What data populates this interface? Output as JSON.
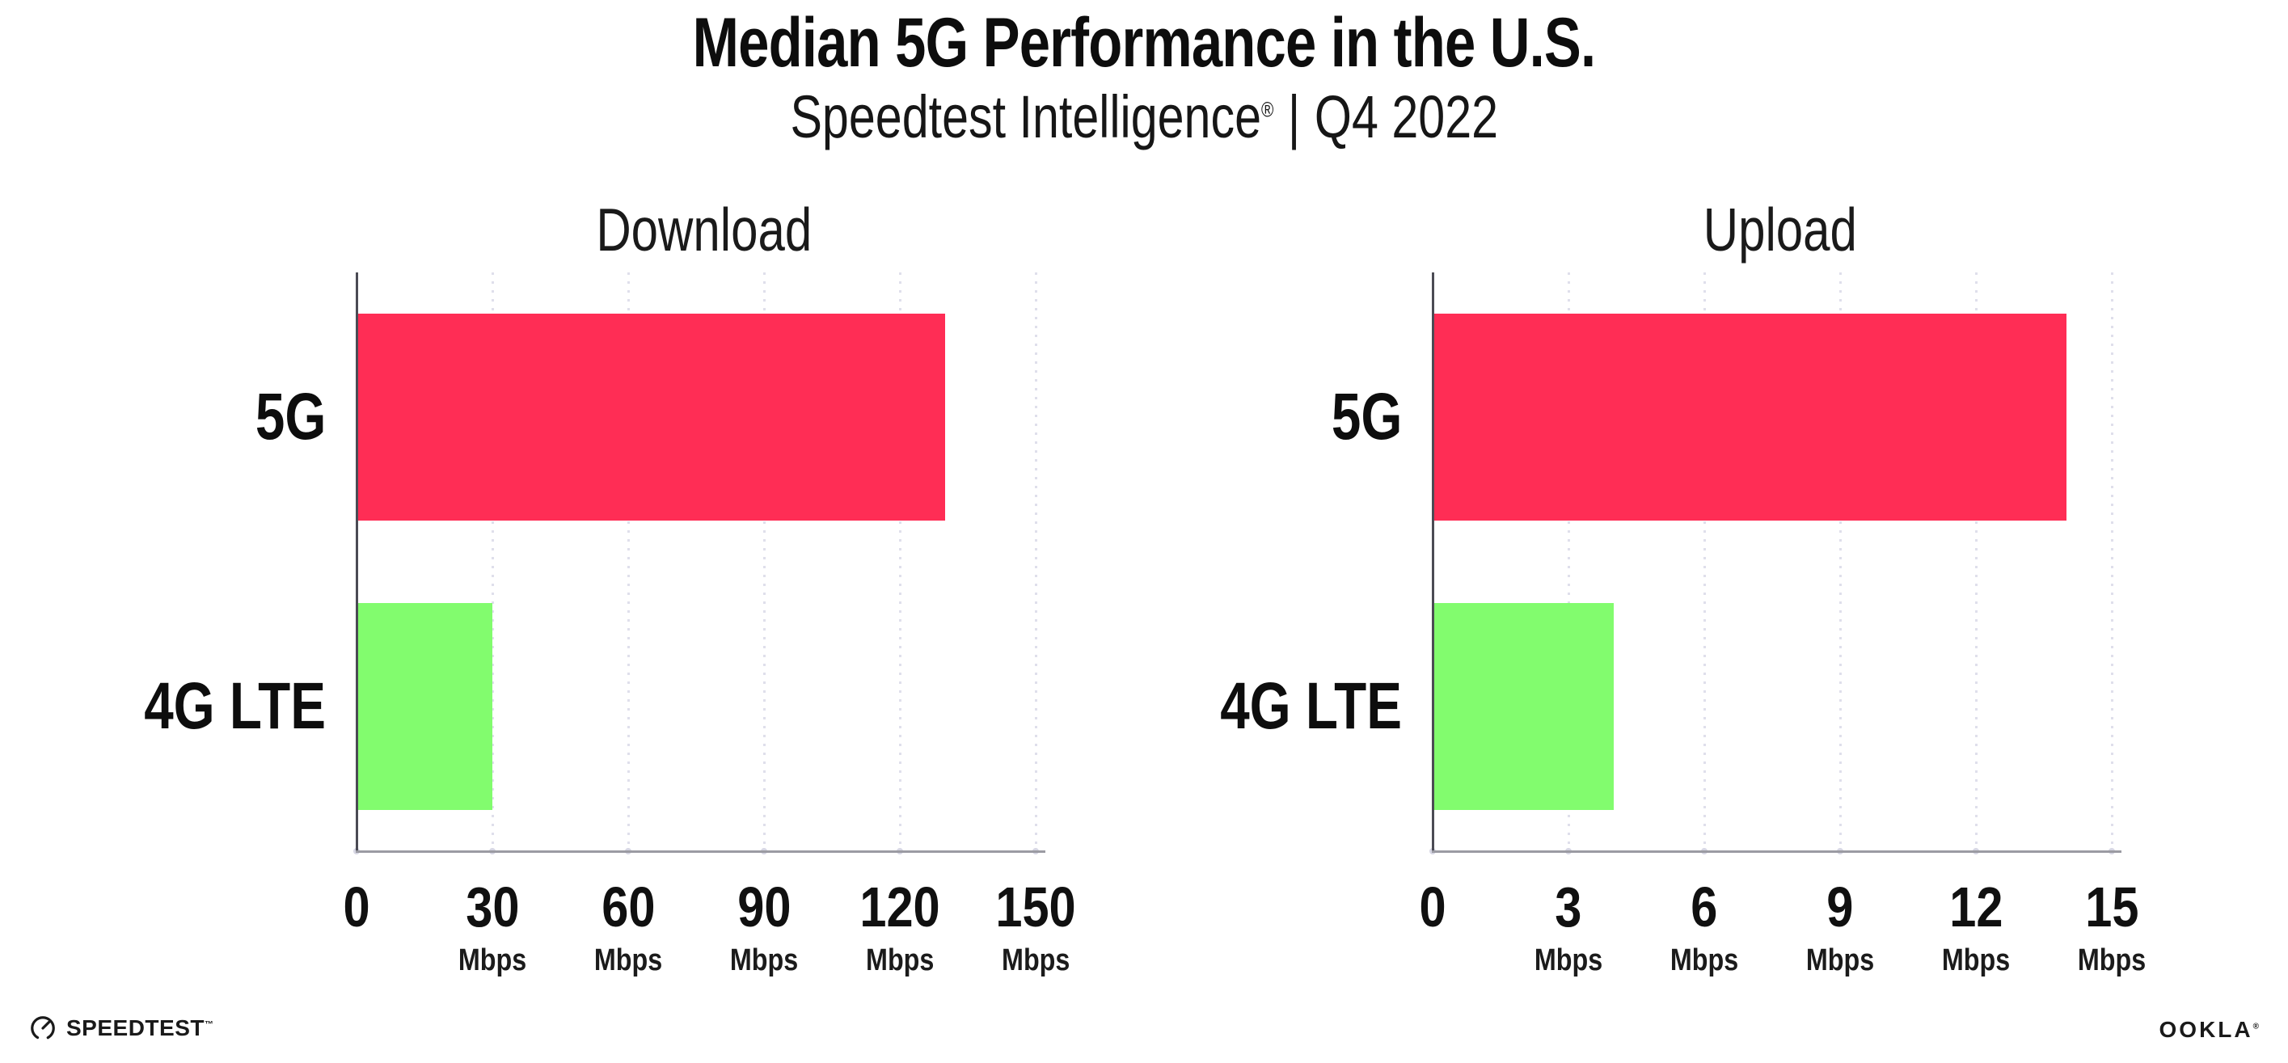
{
  "header": {
    "title": "Median 5G Performance in the U.S.",
    "subtitle_brand": "Speedtest Intelligence",
    "subtitle_reg": "®",
    "subtitle_sep": "|",
    "subtitle_period": "Q4 2022"
  },
  "colors": {
    "bar_5g": "#FF2D55",
    "bar_4g_lte": "#82FC6E",
    "gridline": "#DFDFEB",
    "x_axis": "#9B9BA3",
    "y_axis": "#4B4B54",
    "text": "#111111"
  },
  "chart_data": [
    {
      "type": "bar",
      "orientation": "horizontal",
      "title": "Download",
      "categories": [
        "5G",
        "4G LTE"
      ],
      "values": [
        130,
        30
      ],
      "unit": "Mbps",
      "xlim": [
        0,
        150
      ],
      "xticks": [
        0,
        30,
        60,
        90,
        120,
        150
      ],
      "grid": "vertical-dotted",
      "legend": "none",
      "bar_colors": [
        "#FF2D55",
        "#82FC6E"
      ]
    },
    {
      "type": "bar",
      "orientation": "horizontal",
      "title": "Upload",
      "categories": [
        "5G",
        "4G LTE"
      ],
      "values": [
        14,
        4
      ],
      "unit": "Mbps",
      "xlim": [
        0,
        15
      ],
      "xticks": [
        0,
        3,
        6,
        9,
        12,
        15
      ],
      "grid": "vertical-dotted",
      "legend": "none",
      "bar_colors": [
        "#FF2D55",
        "#82FC6E"
      ]
    }
  ],
  "footer": {
    "speedtest_label": "SPEEDTEST",
    "speedtest_tm": "™",
    "ookla_label": "OOKLA",
    "ookla_reg": "®"
  }
}
